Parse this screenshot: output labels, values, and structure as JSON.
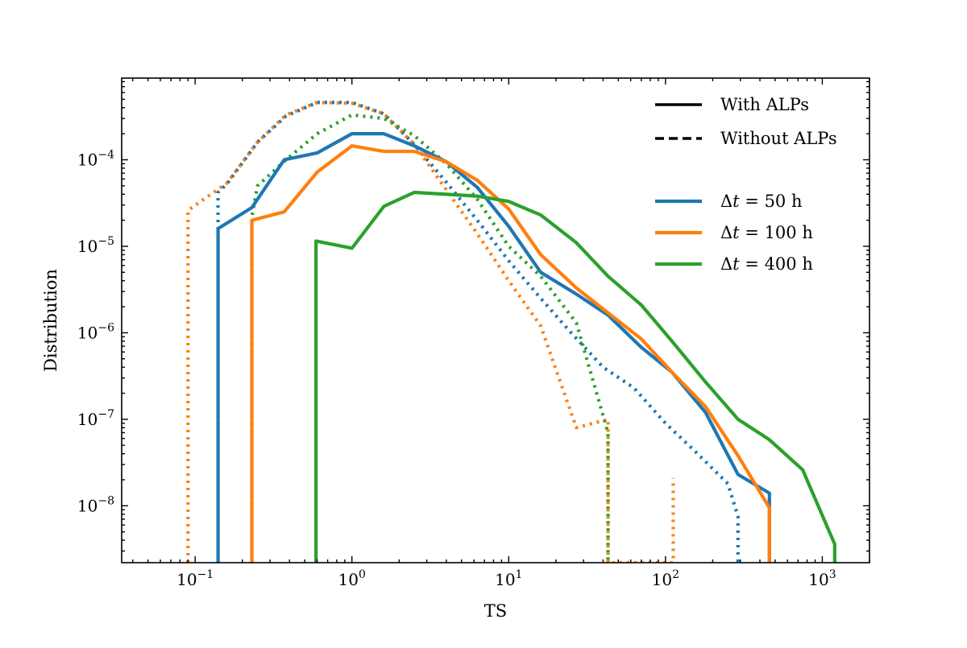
{
  "chart_data": {
    "type": "line",
    "xlabel": "TS",
    "ylabel": "Distribution",
    "xscale": "log",
    "yscale": "log",
    "xlim": [
      0.034,
      2000
    ],
    "ylim": [
      2.2e-09,
      0.00088
    ],
    "grid": false,
    "legend_position": "top-right",
    "x_ticks": [
      {
        "base": "10",
        "exp": "−1"
      },
      {
        "base": "10",
        "exp": "0"
      },
      {
        "base": "10",
        "exp": "1"
      },
      {
        "base": "10",
        "exp": "2"
      },
      {
        "base": "10",
        "exp": "3"
      }
    ],
    "y_ticks": [
      {
        "base": "10",
        "exp": "−8"
      },
      {
        "base": "10",
        "exp": "−7"
      },
      {
        "base": "10",
        "exp": "−6"
      },
      {
        "base": "10",
        "exp": "−5"
      },
      {
        "base": "10",
        "exp": "−4"
      }
    ],
    "legend_styles": [
      {
        "label": "With ALPs",
        "dash": "solid"
      },
      {
        "label": "Without ALPs",
        "dash": "dashed"
      }
    ],
    "legend_series": [
      {
        "prefix": "Δ",
        "var": "t",
        "rest": " = 50 h",
        "color": "#1f77b4"
      },
      {
        "prefix": "Δ",
        "var": "t",
        "rest": " = 100 h",
        "color": "#ff7f0e"
      },
      {
        "prefix": "Δ",
        "var": "t",
        "rest": " = 400 h",
        "color": "#2ca02c"
      }
    ],
    "series": [
      {
        "name": "Δt = 50 h, Without ALPs",
        "color": "#1f77b4",
        "style": "dotted",
        "points": [
          [
            0.14,
            2.2e-09
          ],
          [
            0.14,
            4.2e-05
          ],
          [
            0.16,
            5.3e-05
          ],
          [
            0.25,
            0.00016
          ],
          [
            0.38,
            0.00032
          ],
          [
            0.6,
            0.00046
          ],
          [
            1.0,
            0.00046
          ],
          [
            1.6,
            0.00034
          ],
          [
            2.5,
            0.00015
          ],
          [
            4.0,
            5.5e-05
          ],
          [
            6.3,
            2e-05
          ],
          [
            10,
            6.8e-06
          ],
          [
            16,
            2.5e-06
          ],
          [
            25,
            1e-06
          ],
          [
            40,
            4e-07
          ],
          [
            63,
            2.3e-07
          ],
          [
            100,
            9e-08
          ],
          [
            160,
            4e-08
          ],
          [
            250,
            1.8e-08
          ],
          [
            290,
            7.5e-09
          ],
          [
            290,
            2.2e-09
          ]
        ]
      },
      {
        "name": "Δt = 100 h, Without ALPs",
        "color": "#ff7f0e",
        "style": "dotted",
        "points": [
          [
            0.09,
            2.2e-09
          ],
          [
            0.09,
            2.6e-05
          ],
          [
            0.16,
            5.4e-05
          ],
          [
            0.25,
            0.00016
          ],
          [
            0.38,
            0.00033
          ],
          [
            0.6,
            0.00046
          ],
          [
            1.0,
            0.00045
          ],
          [
            1.6,
            0.00034
          ],
          [
            2.5,
            0.00015
          ],
          [
            4.0,
            4.5e-05
          ],
          [
            6.3,
            1.4e-05
          ],
          [
            10,
            4e-06
          ],
          [
            16,
            1.2e-06
          ],
          [
            27,
            8e-08
          ],
          [
            43,
            1e-07
          ],
          [
            43,
            2.2e-09
          ],
          [
            112,
            2.2e-09
          ],
          [
            112,
            2.1e-08
          ]
        ]
      },
      {
        "name": "Δt = 400 h, Without ALPs",
        "color": "#2ca02c",
        "style": "dotted",
        "points": [
          [
            0.23,
            2.2e-09
          ],
          [
            0.23,
            2.2e-05
          ],
          [
            0.25,
            5e-05
          ],
          [
            0.38,
            0.0001
          ],
          [
            0.6,
            0.0002
          ],
          [
            1.0,
            0.00033
          ],
          [
            1.6,
            0.0003
          ],
          [
            2.5,
            0.00019
          ],
          [
            4.0,
            9e-05
          ],
          [
            6.3,
            3.5e-05
          ],
          [
            10,
            1e-05
          ],
          [
            16,
            4.5e-06
          ],
          [
            27,
            1.3e-06
          ],
          [
            43,
            7e-08
          ],
          [
            43,
            2.2e-09
          ]
        ]
      },
      {
        "name": "Δt = 50 h, With ALPs",
        "color": "#1f77b4",
        "style": "solid",
        "points": [
          [
            0.14,
            2.2e-09
          ],
          [
            0.14,
            1.6e-05
          ],
          [
            0.23,
            2.8e-05
          ],
          [
            0.37,
            0.0001
          ],
          [
            0.6,
            0.00012
          ],
          [
            1.0,
            0.0002
          ],
          [
            1.6,
            0.0002
          ],
          [
            2.5,
            0.000145
          ],
          [
            4.0,
            9.5e-05
          ],
          [
            6.3,
            4.8e-05
          ],
          [
            10,
            1.7e-05
          ],
          [
            16,
            5e-06
          ],
          [
            27,
            2.8e-06
          ],
          [
            43,
            1.6e-06
          ],
          [
            70,
            6.8e-07
          ],
          [
            110,
            3.5e-07
          ],
          [
            180,
            1.2e-07
          ],
          [
            290,
            2.3e-08
          ],
          [
            460,
            1.4e-08
          ],
          [
            460,
            2.2e-09
          ]
        ]
      },
      {
        "name": "Δt = 100 h, With ALPs",
        "color": "#ff7f0e",
        "style": "solid",
        "points": [
          [
            0.23,
            2.2e-09
          ],
          [
            0.23,
            2e-05
          ],
          [
            0.37,
            2.5e-05
          ],
          [
            0.6,
            7.2e-05
          ],
          [
            1.0,
            0.000145
          ],
          [
            1.6,
            0.000125
          ],
          [
            2.5,
            0.000125
          ],
          [
            4.0,
            9.5e-05
          ],
          [
            6.3,
            5.8e-05
          ],
          [
            10,
            2.7e-05
          ],
          [
            16,
            8e-06
          ],
          [
            27,
            3.3e-06
          ],
          [
            43,
            1.7e-06
          ],
          [
            70,
            8.5e-07
          ],
          [
            110,
            3.5e-07
          ],
          [
            180,
            1.4e-07
          ],
          [
            290,
            3.8e-08
          ],
          [
            460,
            9.5e-09
          ],
          [
            460,
            2.2e-09
          ]
        ]
      },
      {
        "name": "Δt = 400 h, With ALPs",
        "color": "#2ca02c",
        "style": "solid",
        "points": [
          [
            0.59,
            2.2e-09
          ],
          [
            0.59,
            1.15e-05
          ],
          [
            1.0,
            9.5e-06
          ],
          [
            1.6,
            2.9e-05
          ],
          [
            2.5,
            4.2e-05
          ],
          [
            6.3,
            3.8e-05
          ],
          [
            10,
            3.3e-05
          ],
          [
            16,
            2.3e-05
          ],
          [
            27,
            1.1e-05
          ],
          [
            43,
            4.5e-06
          ],
          [
            70,
            2.1e-06
          ],
          [
            110,
            8e-07
          ],
          [
            180,
            2.7e-07
          ],
          [
            290,
            1e-07
          ],
          [
            460,
            5.8e-08
          ],
          [
            750,
            2.6e-08
          ],
          [
            1200,
            3.6e-09
          ],
          [
            1200,
            2.2e-09
          ]
        ]
      }
    ]
  }
}
